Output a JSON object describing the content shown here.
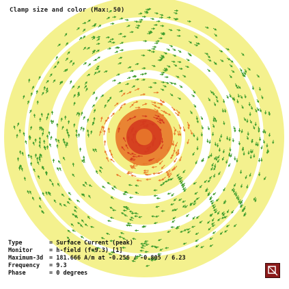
{
  "clamp": {
    "label": "Clamp size and color (Max: 50)"
  },
  "monitor_info": {
    "rows": [
      {
        "key": "Type",
        "value": "= Surface Current (peak)"
      },
      {
        "key": "Monitor",
        "value": "= h-field (f=9.3) [1]"
      },
      {
        "key": "Maximum-3d",
        "value": "= 181.666 A/m at -0.256 / -0.805 / 6.23"
      },
      {
        "key": "Frequency",
        "value": "= 9.3"
      },
      {
        "key": "Phase",
        "value": "= 0 degrees"
      }
    ]
  },
  "colors": {
    "background": "#ffffff",
    "ring_yellow": "#f2ef7a",
    "arrow_green": "#3f9d2e",
    "center_orange": "#e8782a",
    "center_red": "#d43a1e",
    "nav_widget": "#8b1a1a"
  },
  "icons": {
    "axes": "axes-orientation-icon"
  }
}
